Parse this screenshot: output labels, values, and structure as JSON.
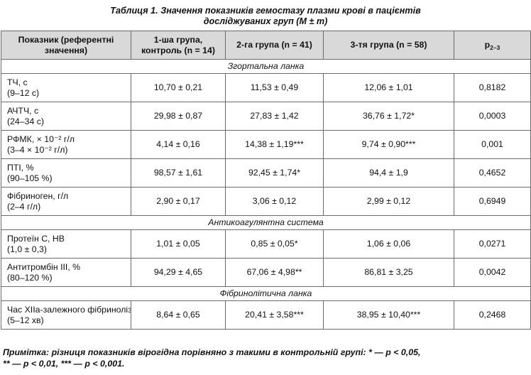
{
  "caption": {
    "line1": "Таблиця 1. Значення показників гемостазу плазми крові в пацієнтів",
    "line2": "досліджуваних груп (M ± m)"
  },
  "table": {
    "headers": {
      "indicator": "Показник (референтні значення)",
      "group1": "1-ша група, контроль (n = 14)",
      "group2": "2-га група (n = 41)",
      "group3": "3-тя група (n = 58)",
      "p_main": "p",
      "p_sub": "2–3"
    },
    "sections": [
      {
        "title": "Згортальна ланка",
        "rows": [
          {
            "name": "ТЧ, с",
            "ref": "(9–12 с)",
            "g1": "10,70 ± 0,21",
            "g2": "11,53 ± 0,49",
            "g3": "12,06 ± 1,01",
            "p": "0,8182"
          },
          {
            "name": "АЧТЧ, с",
            "ref": "(24–34 с)",
            "g1": "29,98 ± 0,87",
            "g2": "27,83 ± 1,42",
            "g3": "36,76 ± 1,72*",
            "p": "0,0003"
          },
          {
            "name": "РФМК, × 10⁻² г/л",
            "ref": "(3–4 × 10⁻² г/л)",
            "g1": "4,14 ± 0,16",
            "g2": "14,38 ± 1,19***",
            "g3": "9,74 ± 0,90***",
            "p": "0,001"
          },
          {
            "name": "ПТІ, %",
            "ref": "(90–105 %)",
            "g1": "98,57 ± 1,61",
            "g2": "92,45 ± 1,74*",
            "g3": "94,4 ± 1,9",
            "p": "0,4652"
          },
          {
            "name": "Фібриноген, г/л",
            "ref": "(2–4 г/л)",
            "g1": "2,90 ± 0,17",
            "g2": "3,06 ± 0,12",
            "g3": "2,99 ± 0,12",
            "p": "0,6949"
          }
        ]
      },
      {
        "title": "Антикоагулянтна система",
        "rows": [
          {
            "name": "Протеїн С, НВ",
            "ref": "(1,0 ± 0,3)",
            "g1": "1,01 ± 0,05",
            "g2": "0,85 ± 0,05*",
            "g3": "1,06 ± 0,06",
            "p": "0,0271"
          },
          {
            "name": "Антитромбін ІІІ, %",
            "ref": "(80–120 %)",
            "g1": "94,29 ± 4,65",
            "g2": "67,06 ± 4,98**",
            "g3": "86,81 ± 3,25",
            "p": "0,0042"
          }
        ]
      },
      {
        "title": "Фібринолітична ланка",
        "rows": [
          {
            "name": "Час ХІІа-залежного фібринолізу, хв",
            "ref": "(5–12 хв)",
            "g1": "8,64 ± 0,65",
            "g2": "20,41 ± 3,58***",
            "g3": "38,95 ± 10,40***",
            "p": "0,2468"
          }
        ]
      }
    ]
  },
  "note": {
    "line1": "Примітка: різниця показників вірогідна порівняно з такими в контрольній групі: * — р < 0,05,",
    "line2": "** — р < 0,01, *** — р < 0,001."
  },
  "colors": {
    "header_bg": "#d9d9d9",
    "border": "#6b6b6b",
    "text": "#111111"
  }
}
